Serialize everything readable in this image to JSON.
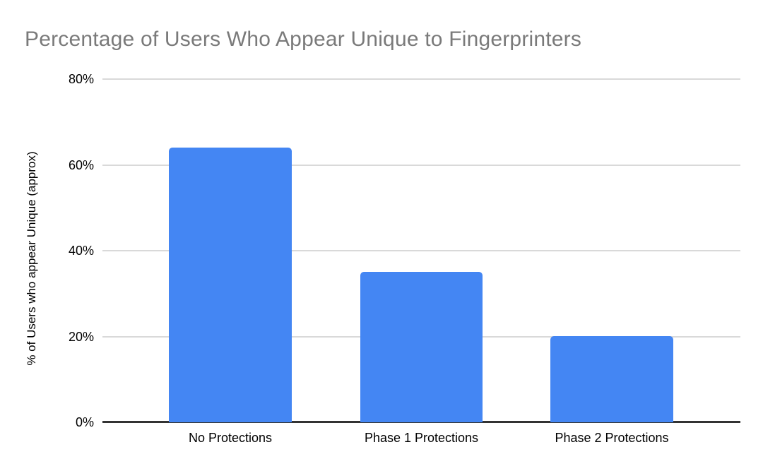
{
  "chart": {
    "title": "Percentage of Users Who Appear Unique to Fingerprinters",
    "y_axis_title": "% of Users who appear Unique (approx)",
    "colors": {
      "bar": "#4486f3",
      "title_text": "#7a7a7a",
      "axis_text": "#000000",
      "gridline": "#d9d9d9",
      "axis_line": "#333333",
      "background": "#ffffff"
    }
  },
  "chart_data": {
    "type": "bar",
    "title": "Percentage of Users Who Appear Unique to Fingerprinters",
    "categories": [
      "No Protections",
      "Phase 1 Protections",
      "Phase 2 Protections"
    ],
    "values": [
      64,
      35,
      20
    ],
    "xlabel": "",
    "ylabel": "% of Users who appear Unique (approx)",
    "ylim": [
      0,
      80
    ],
    "y_ticks": [
      0,
      20,
      40,
      60,
      80
    ],
    "y_tick_labels": [
      "0%",
      "20%",
      "40%",
      "60%",
      "80%"
    ],
    "grid": true,
    "legend": false,
    "bar_color": "#4486f3"
  }
}
